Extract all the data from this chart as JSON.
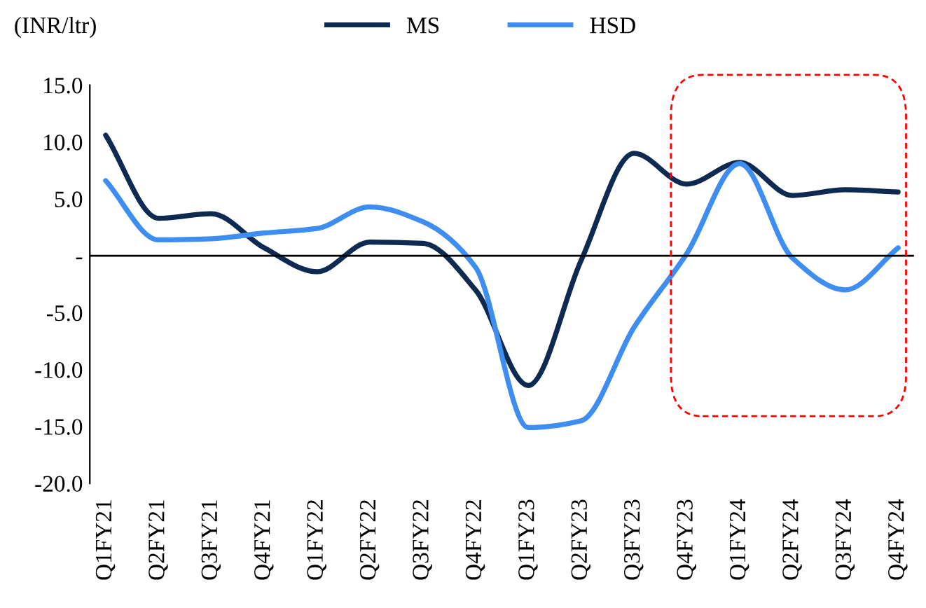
{
  "chart_data": {
    "type": "line",
    "ylabel": "(INR/ltr)",
    "categories": [
      "Q1FY21",
      "Q2FY21",
      "Q3FY21",
      "Q4FY21",
      "Q1FY22",
      "Q2FY22",
      "Q3FY22",
      "Q4FY22",
      "Q1FY23",
      "Q2FY23",
      "Q3FY23",
      "Q4FY23",
      "Q1FY24",
      "Q2FY24",
      "Q3FY24",
      "Q4FY24"
    ],
    "series": [
      {
        "name": "MS",
        "color": "#0e2a50",
        "values": [
          10.6,
          3.3,
          3.7,
          0.7,
          -1.4,
          1.2,
          1.1,
          -3.0,
          -11.4,
          -0.4,
          9.0,
          6.3,
          8.2,
          5.3,
          5.8,
          5.6
        ]
      },
      {
        "name": "HSD",
        "color": "#3d8ef0",
        "values": [
          6.6,
          1.4,
          1.5,
          2.0,
          2.4,
          4.3,
          3.0,
          -1.0,
          -15.1,
          -14.5,
          -6.3,
          0.2,
          8.1,
          -0.2,
          -3.0,
          0.7
        ]
      }
    ],
    "ylim": [
      -20,
      15
    ],
    "yticks": [
      {
        "value": -20,
        "label": "-20.0"
      },
      {
        "value": -15,
        "label": "-15.0"
      },
      {
        "value": -10,
        "label": "-10.0"
      },
      {
        "value": -5,
        "label": "-5.0"
      },
      {
        "value": 0,
        "label": "-"
      },
      {
        "value": 5,
        "label": "5.0"
      },
      {
        "value": 10,
        "label": "10.0"
      },
      {
        "value": 15,
        "label": "15.0"
      }
    ],
    "ref_lines": [
      {
        "axis": "y",
        "value": 0,
        "color": "#000000"
      }
    ],
    "legend": "top",
    "grid": false,
    "marker": "none",
    "line_style": "solid"
  }
}
